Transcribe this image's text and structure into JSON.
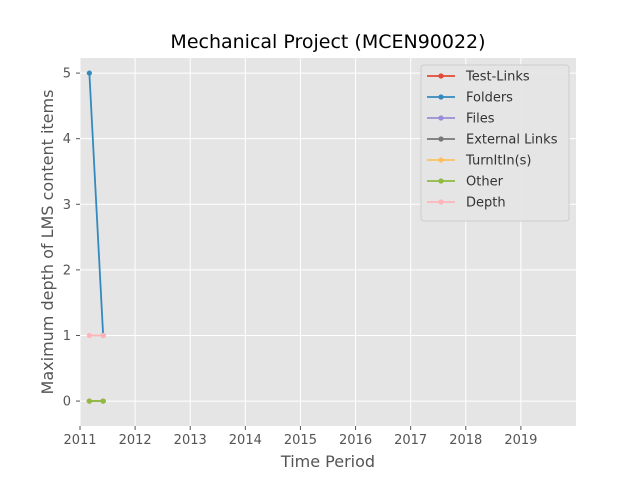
{
  "chart_data": {
    "type": "line",
    "title": "Mechanical Project (MCEN90022)",
    "xlabel": "Time Period",
    "ylabel": "Maximum depth of LMS content items",
    "xlim": [
      2011.0,
      2020.0
    ],
    "ylim": [
      -0.38,
      5.23
    ],
    "x_ticks": [
      2011,
      2012,
      2013,
      2014,
      2015,
      2016,
      2017,
      2018,
      2019
    ],
    "x_tick_labels": [
      "2011",
      "2012",
      "2013",
      "2014",
      "2015",
      "2016",
      "2017",
      "2018",
      "2019"
    ],
    "y_ticks": [
      0,
      1,
      2,
      3,
      4,
      5
    ],
    "y_tick_labels": [
      "0",
      "1",
      "2",
      "3",
      "4",
      "5"
    ],
    "grid": true,
    "legend_position": "top-right",
    "background": "#e5e5e5",
    "series": [
      {
        "name": "Test-Links",
        "color": "#e24a33",
        "x": [
          2011.17,
          2011.42
        ],
        "y": [
          0,
          0
        ]
      },
      {
        "name": "Folders",
        "color": "#348abd",
        "x": [
          2011.17,
          2011.42
        ],
        "y": [
          5,
          1
        ]
      },
      {
        "name": "Files",
        "color": "#988ed5",
        "x": [
          2011.17,
          2011.42
        ],
        "y": [
          0,
          0
        ]
      },
      {
        "name": "External Links",
        "color": "#777777",
        "x": [
          2011.17,
          2011.42
        ],
        "y": [
          0,
          0
        ]
      },
      {
        "name": "TurnItIn(s)",
        "color": "#fbc15e",
        "x": [
          2011.17,
          2011.42
        ],
        "y": [
          0,
          0
        ]
      },
      {
        "name": "Other",
        "color": "#8eba42",
        "x": [
          2011.17,
          2011.42
        ],
        "y": [
          0,
          0
        ]
      },
      {
        "name": "Depth",
        "color": "#ffb5b8",
        "x": [
          2011.17,
          2011.42
        ],
        "y": [
          1,
          1
        ]
      }
    ]
  }
}
